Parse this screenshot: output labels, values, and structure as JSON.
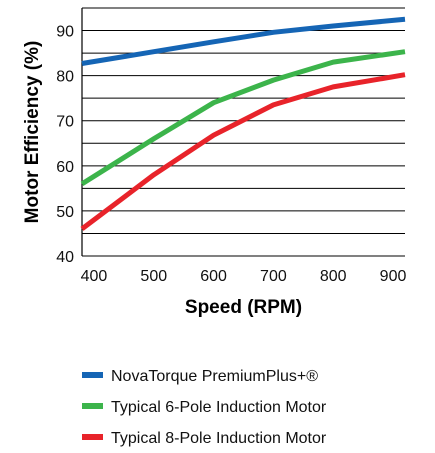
{
  "chart_data": {
    "type": "line",
    "title": "",
    "xlabel": "Speed (RPM)",
    "ylabel": "Motor Efficiency (%)",
    "xlim": [
      380,
      920
    ],
    "ylim": [
      40,
      95
    ],
    "x_ticks": [
      400,
      500,
      600,
      700,
      800,
      900
    ],
    "y_ticks": [
      40,
      50,
      60,
      70,
      80,
      90
    ],
    "gridlines_y": [
      40,
      45,
      50,
      55,
      60,
      65,
      70,
      75,
      80,
      85,
      90,
      95
    ],
    "grid": "horizontal",
    "legend_position": "bottom",
    "series": [
      {
        "name": "NovaTorque PremiumPlus+®",
        "color": "#1565b5",
        "x": [
          380,
          500,
          600,
          700,
          800,
          920
        ],
        "y": [
          82.7,
          85.3,
          87.5,
          89.6,
          91.0,
          92.5
        ]
      },
      {
        "name": "Typical 6-Pole Induction Motor",
        "color": "#3cb44b",
        "x": [
          380,
          500,
          600,
          700,
          800,
          920
        ],
        "y": [
          56.0,
          66.0,
          74.0,
          79.0,
          83.0,
          85.3
        ]
      },
      {
        "name": "Typical 8-Pole Induction Motor",
        "color": "#e8232a",
        "x": [
          380,
          500,
          600,
          700,
          800,
          920
        ],
        "y": [
          46.0,
          58.0,
          66.8,
          73.5,
          77.5,
          80.2
        ]
      }
    ]
  }
}
